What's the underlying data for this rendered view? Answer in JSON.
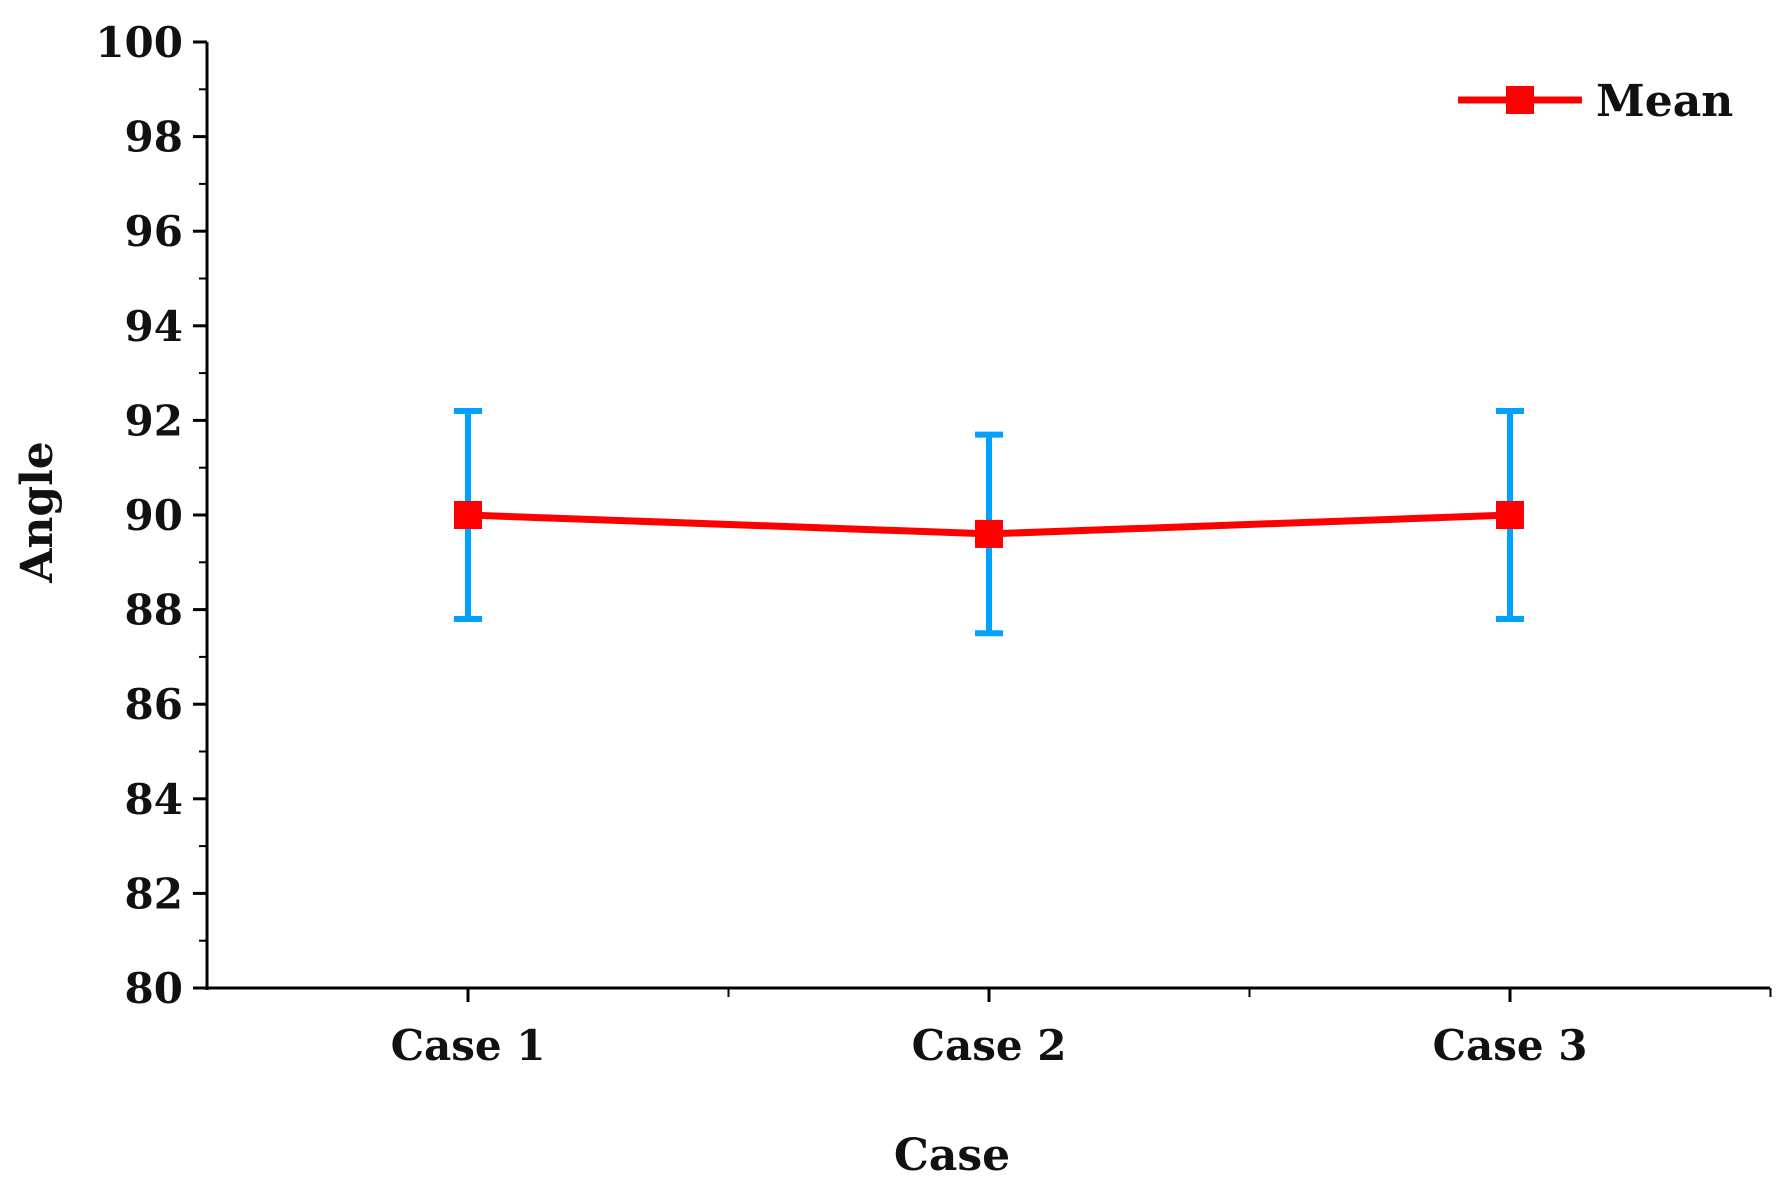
{
  "chart_data": {
    "type": "line",
    "categories": [
      "Case 1",
      "Case 2",
      "Case 3"
    ],
    "series": [
      {
        "name": "Mean",
        "values": [
          90.0,
          89.6,
          90.0
        ],
        "error_low": [
          87.8,
          87.5,
          87.8
        ],
        "error_high": [
          92.2,
          91.7,
          92.2
        ]
      }
    ],
    "xlabel": "Case",
    "ylabel": "Angle",
    "ylim": [
      80,
      100
    ],
    "yticks": [
      "80",
      "82",
      "84",
      "86",
      "88",
      "90",
      "92",
      "94",
      "96",
      "98",
      "100"
    ],
    "grid": false,
    "legend_position": "top-right",
    "colors": {
      "line": "#ff0000",
      "marker": "#ff0000",
      "error_bar": "#00a2ff",
      "axis": "#000000"
    }
  }
}
